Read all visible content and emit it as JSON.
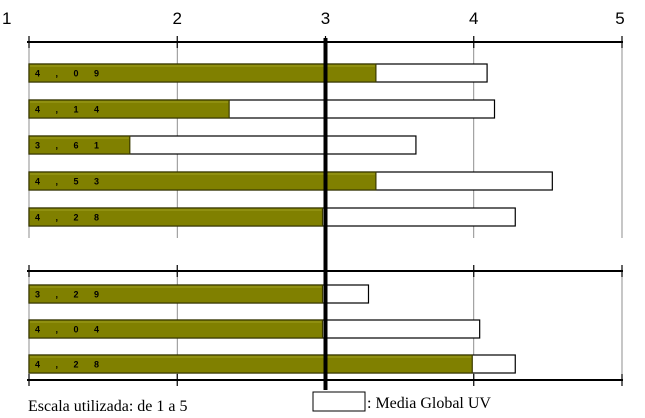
{
  "chart_data": {
    "type": "bar",
    "orientation": "horizontal",
    "xlim": [
      1,
      5
    ],
    "ticks": [
      "1",
      "2",
      "3",
      "4",
      "5"
    ],
    "reference_value": 3,
    "groups": [
      {
        "bars": [
          {
            "label": "4 , 0 9",
            "value": 4.09,
            "secondary": 3.34
          },
          {
            "label": "4 , 1 4",
            "value": 4.14,
            "secondary": 2.35
          },
          {
            "label": "3 , 6 1",
            "value": 3.61,
            "secondary": 1.68
          },
          {
            "label": "4 , 5 3",
            "value": 4.53,
            "secondary": 3.34
          },
          {
            "label": "4 , 2 8",
            "value": 4.28,
            "secondary": 2.98
          }
        ]
      },
      {
        "bars": [
          {
            "label": "3 , 2 9",
            "value": 3.29,
            "secondary": 2.98
          },
          {
            "label": "4 , 0 4",
            "value": 4.04,
            "secondary": 2.98
          },
          {
            "label": "4 , 2 8",
            "value": 4.28,
            "secondary": 3.99
          }
        ]
      }
    ],
    "bar_color": "#808000",
    "outline_color": "#000000"
  },
  "footer": {
    "scale_note": "Escala utilizada: de 1 a 5",
    "legend_label": ": Media Global UV"
  }
}
